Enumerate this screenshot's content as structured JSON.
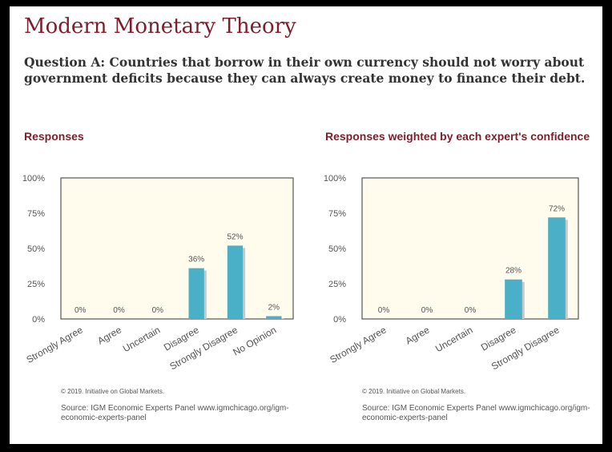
{
  "title": "Modern Monetary Theory",
  "question": "Question A: Countries that borrow in their own currency should not worry about government deficits because they can always create money to finance their debt.",
  "colors": {
    "bar": "#4ab0c8",
    "plot_bg": "#fffbed",
    "title": "#7a1f2b"
  },
  "chart_data": [
    {
      "type": "bar",
      "title": "Responses",
      "categories": [
        "Strongly Agree",
        "Agree",
        "Uncertain",
        "Disagree",
        "Strongly Disagree",
        "No Opinion"
      ],
      "values": [
        0,
        0,
        0,
        36,
        52,
        2
      ],
      "value_labels": [
        "0%",
        "0%",
        "0%",
        "36%",
        "52%",
        "2%"
      ],
      "yticks": [
        "0%",
        "25%",
        "50%",
        "75%",
        "100%"
      ],
      "ylim": [
        0,
        100
      ],
      "copyright": "© 2019. Initiative on Global Markets.",
      "source": "Source: IGM Economic Experts Panel www.igmchicago.org/igm-economic-experts-panel"
    },
    {
      "type": "bar",
      "title": "Responses weighted by each expert's confidence",
      "categories": [
        "Strongly Agree",
        "Agree",
        "Uncertain",
        "Disagree",
        "Strongly Disagree"
      ],
      "values": [
        0,
        0,
        0,
        28,
        72
      ],
      "value_labels": [
        "0%",
        "0%",
        "0%",
        "28%",
        "72%"
      ],
      "yticks": [
        "0%",
        "25%",
        "50%",
        "75%",
        "100%"
      ],
      "ylim": [
        0,
        100
      ],
      "copyright": "© 2019. Initiative on Global Markets.",
      "source": "Source: IGM Economic Experts Panel www.igmchicago.org/igm-economic-experts-panel"
    }
  ]
}
